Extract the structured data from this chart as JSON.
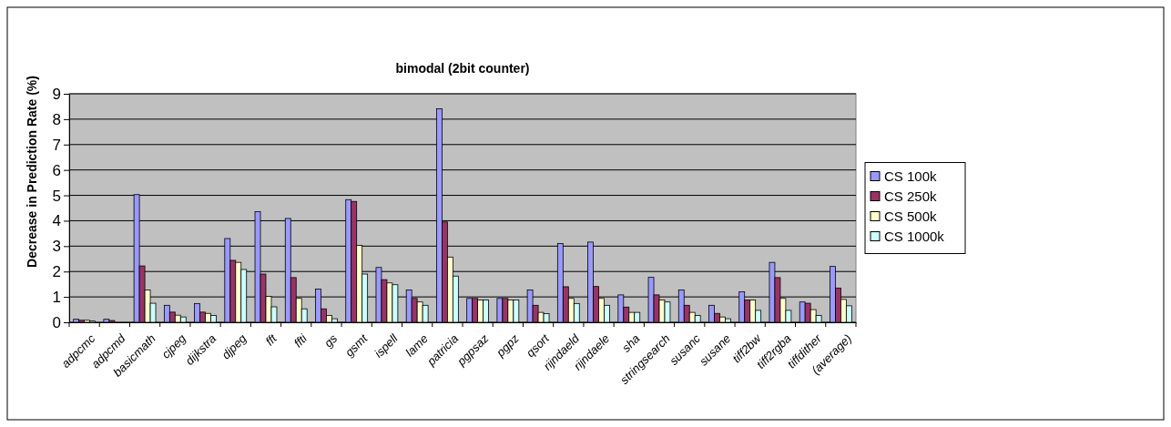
{
  "chart_data": {
    "type": "bar",
    "title": "bimodal (2bit counter)",
    "ylabel": "Decrease in Prediction Rate (%)",
    "categories": [
      "adpcmc",
      "adpcmd",
      "basicmath",
      "cjpeg",
      "dijkstra",
      "djpeg",
      "fft",
      "ffti",
      "gs",
      "gsmt",
      "ispell",
      "lame",
      "patricia",
      "pgpsaz",
      "pgpz",
      "qsort",
      "rijndaeld",
      "rijndaele",
      "sha",
      "stringsearch",
      "susanc",
      "susane",
      "tiff2bw",
      "tiff2rgba",
      "tiffdither",
      "(average)"
    ],
    "series": [
      {
        "name": "CS 100k",
        "color": "#9999ff",
        "values": [
          0.12,
          0.12,
          5.03,
          0.67,
          0.74,
          3.3,
          4.36,
          4.09,
          1.31,
          4.83,
          2.16,
          1.27,
          8.41,
          0.94,
          0.94,
          1.27,
          3.1,
          3.16,
          1.08,
          1.77,
          1.27,
          0.67,
          1.2,
          2.36,
          0.8,
          2.2
        ]
      },
      {
        "name": "CS 250k",
        "color": "#993366",
        "values": [
          0.08,
          0.07,
          2.22,
          0.4,
          0.4,
          2.44,
          1.9,
          1.76,
          0.53,
          4.76,
          1.68,
          0.94,
          3.95,
          0.94,
          0.94,
          0.67,
          1.4,
          1.41,
          0.6,
          1.08,
          0.67,
          0.35,
          0.88,
          1.76,
          0.75,
          1.35
        ]
      },
      {
        "name": "CS 500k",
        "color": "#ffffcc",
        "values": [
          0.08,
          0,
          1.27,
          0.28,
          0.35,
          2.36,
          1.02,
          0.94,
          0.27,
          3.03,
          1.55,
          0.8,
          2.57,
          0.88,
          0.88,
          0.39,
          0.94,
          0.94,
          0.39,
          0.88,
          0.39,
          0.21,
          0.88,
          0.94,
          0.5,
          0.9
        ]
      },
      {
        "name": "CS 1000k",
        "color": "#ccffff",
        "values": [
          0.05,
          0,
          0.75,
          0.21,
          0.27,
          2.08,
          0.61,
          0.53,
          0.14,
          1.9,
          1.48,
          0.67,
          1.82,
          0.88,
          0.88,
          0.34,
          0.74,
          0.67,
          0.39,
          0.8,
          0.27,
          0.14,
          0.47,
          0.47,
          0.27,
          0.65
        ]
      }
    ],
    "ylim": [
      0,
      9
    ],
    "yticks": [
      0,
      1,
      2,
      3,
      4,
      5,
      6,
      7,
      8,
      9
    ],
    "grid": "y",
    "legend": "right"
  }
}
